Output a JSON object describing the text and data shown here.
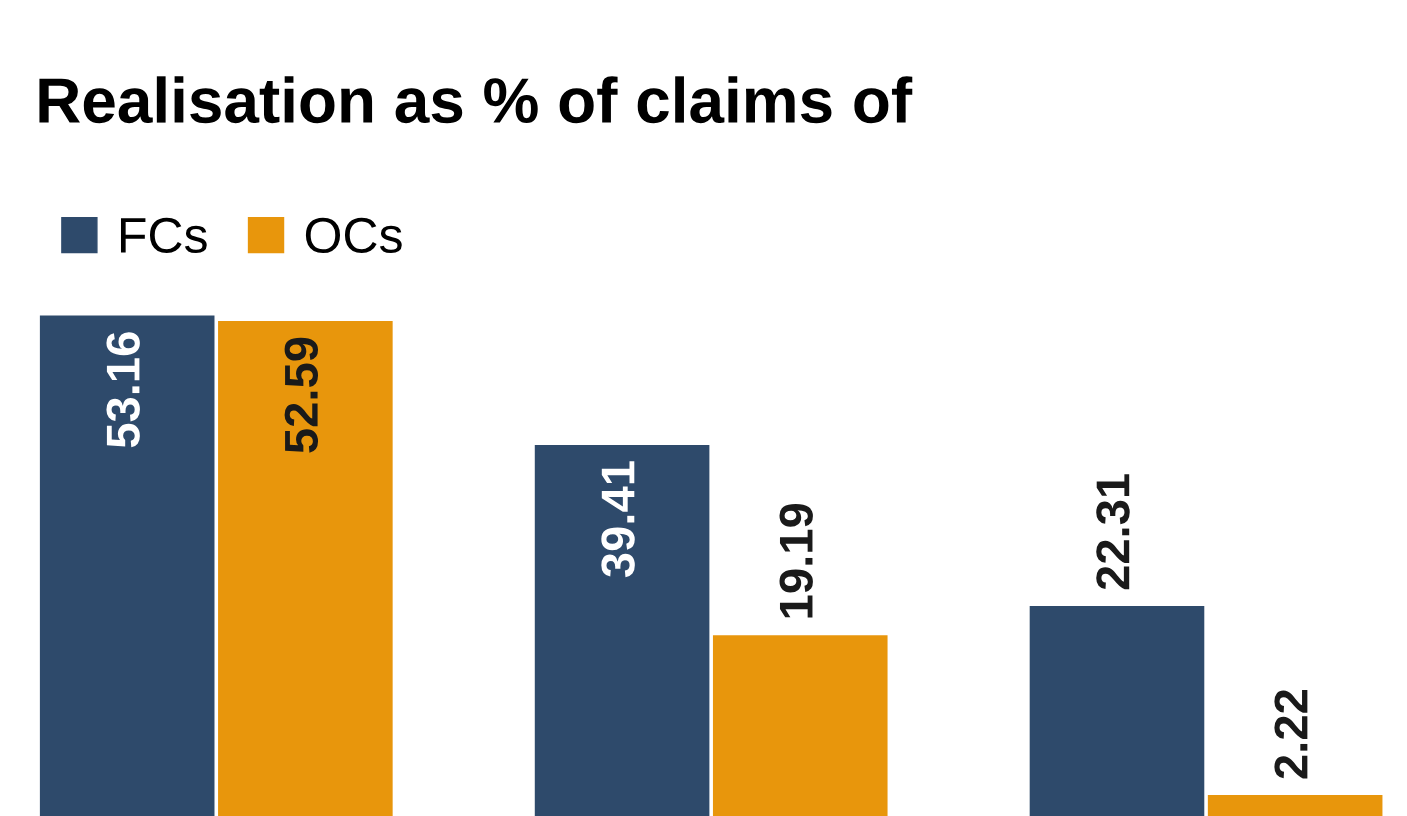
{
  "chart_data": {
    "type": "bar",
    "title": "Realisation as % of claims of",
    "categories": [
      null,
      null,
      null
    ],
    "series": [
      {
        "name": "FCs",
        "color": "#2e4a6b",
        "values": [
          53.16,
          39.41,
          22.31
        ]
      },
      {
        "name": "OCs",
        "color": "#e8960c",
        "values": [
          52.59,
          19.19,
          2.22
        ]
      }
    ],
    "data_labels": true,
    "legend": "top left"
  }
}
